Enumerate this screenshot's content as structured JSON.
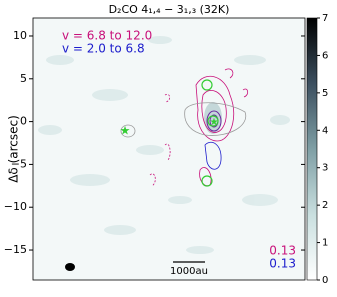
{
  "chart_data": {
    "type": "map",
    "title": "D₂CO 4₁,₄ − 3₁,₃ (32K)",
    "ylabel": "Δδ (arcsec)",
    "ylim": [
      -18.5,
      12.1
    ],
    "yticks": [
      10,
      5,
      0,
      {
        "value": -5,
        "label": "−5"
      },
      {
        "value": -10,
        "label": "−10"
      },
      {
        "value": -15,
        "label": "−15"
      }
    ],
    "colorbar": {
      "lim": [
        0,
        7
      ],
      "ticks": [
        0,
        1,
        2,
        3,
        4,
        5,
        6,
        7
      ],
      "colors": [
        "#ffffff",
        "#c9dfdf",
        "#7f9fa5",
        "#3c4f5f",
        "#000000"
      ]
    },
    "series": [
      {
        "name": "v = 6.8 to 12.0",
        "color": "#c8107a",
        "contour_level": 0.13
      },
      {
        "name": "v = 2.0 to 6.8",
        "color": "#1c1ccc",
        "contour_level": 0.13
      }
    ],
    "scalebar": "1000au"
  }
}
